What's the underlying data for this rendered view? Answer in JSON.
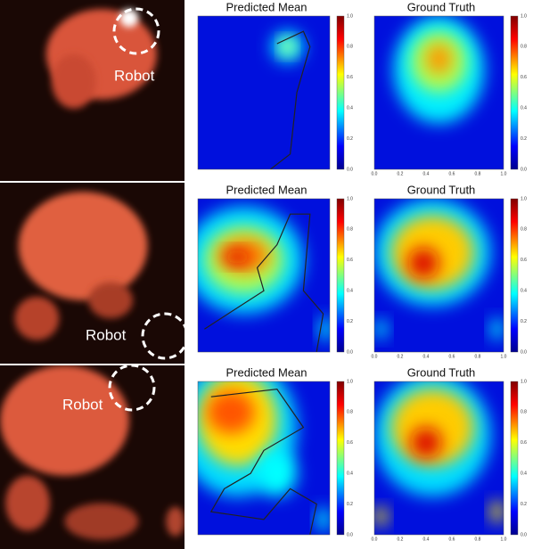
{
  "rows": [
    {
      "robot_label": "Robot",
      "pred_title": "Predicted Mean",
      "gt_title": "Ground Truth",
      "pred_colorbar_ticks": [
        "1.0",
        "0.8",
        "0.6",
        "0.4",
        "0.2",
        "0.0"
      ],
      "gt_colorbar_ticks": [
        "1.0",
        "0.8",
        "0.6",
        "0.4",
        "0.2",
        "0.0"
      ],
      "gt_x_ticks": [
        "0.0",
        "0.2",
        "0.4",
        "0.6",
        "0.8",
        "1.0"
      ]
    },
    {
      "robot_label": "Robot",
      "pred_title": "Predicted Mean",
      "gt_title": "Ground Truth",
      "pred_colorbar_ticks": [
        "1.0",
        "0.8",
        "0.6",
        "0.4",
        "0.2",
        "0.0"
      ],
      "gt_colorbar_ticks": [
        "1.0",
        "0.8",
        "0.6",
        "0.4",
        "0.2",
        "0.0"
      ],
      "gt_x_ticks": [
        "0.0",
        "0.2",
        "0.4",
        "0.6",
        "0.8",
        "1.0"
      ]
    },
    {
      "robot_label": "Robot",
      "pred_title": "Predicted Mean",
      "gt_title": "Ground Truth",
      "pred_colorbar_ticks": [
        "1.0",
        "0.8",
        "0.6",
        "0.4",
        "0.2",
        "0.0"
      ],
      "gt_colorbar_ticks": [
        "1.0",
        "0.8",
        "0.6",
        "0.4",
        "0.2",
        "0.0"
      ],
      "gt_x_ticks": [
        "0.0",
        "0.2",
        "0.4",
        "0.6",
        "0.8",
        "1.0"
      ]
    }
  ]
}
